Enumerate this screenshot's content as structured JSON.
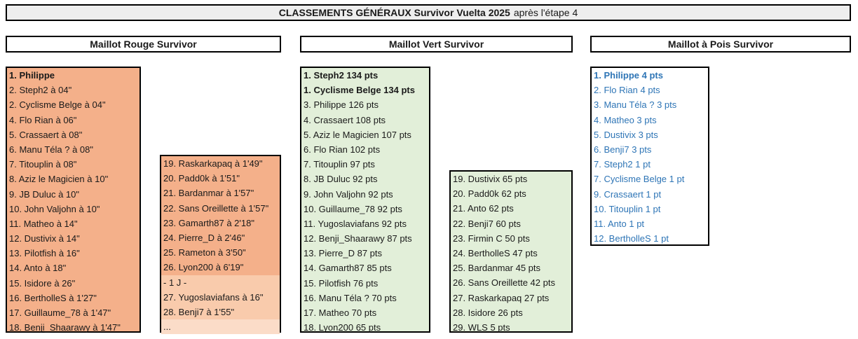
{
  "title": {
    "bold": "CLASSEMENTS GÉNÉRAUX Survivor Vuelta 2025",
    "rest": "après l'étape 4"
  },
  "rouge": {
    "header": "Maillot Rouge Survivor",
    "col1": [
      "1. Philippe",
      "2. Steph2 à 04\"",
      "2. Cyclisme Belge à 04\"",
      "4. Flo Rian à 06\"",
      "5. Crassaert à 08\"",
      "6. Manu Téla ? à 08\"",
      "7. Titouplin à 08\"",
      "8. Aziz le Magicien à 10\"",
      "9. JB Duluc à 10\"",
      "10. John Valjohn à 10\"",
      "11. Matheo à 14\"",
      "12. Dustivix à 14\"",
      "13. Pilotfish à 16\"",
      "14. Anto à 18\"",
      "15. Isidore à 26\"",
      "16. BertholleS à 1'27\"",
      "17. Guillaume_78 à 1'47\"",
      "18. Benji_Shaarawy à 1'47\""
    ],
    "col2": [
      "19. Raskarkapaq à 1'49\"",
      "20. Padd0k à 1'51\"",
      "21. Bardanmar à 1'57\"",
      "22. Sans Oreillette à 1'57\"",
      "23. Gamarth87 à 2'18\"",
      "24. Pierre_D à 2'46\"",
      "25. Rameton à 3'50\"",
      "26. Lyon200 à 6'19\""
    ],
    "col2_extra": [
      " - 1 J -",
      "27. Yugoslaviafans à 16\"",
      "28. Benji7 à 1'55\"",
      "..."
    ]
  },
  "vert": {
    "header": "Maillot Vert Survivor",
    "col1": [
      "1. Steph2 134 pts",
      "1. Cyclisme Belge 134 pts",
      "3. Philippe 126 pts",
      "4. Crassaert 108 pts",
      "5. Aziz le Magicien 107 pts",
      "6. Flo Rian 102 pts",
      "7. Titouplin 97 pts",
      "8. JB Duluc 92 pts",
      "9. John Valjohn 92 pts",
      "10. Guillaume_78 92 pts",
      "11. Yugoslaviafans 92 pts",
      "12. Benji_Shaarawy 87 pts",
      "13. Pierre_D 87 pts",
      "14. Gamarth87 85 pts",
      "15. Pilotfish 76 pts",
      "16. Manu Téla ? 70 pts",
      "17. Matheo 70 pts",
      "18. Lyon200 65 pts"
    ],
    "col2": [
      "19. Dustivix 65 pts",
      "20. Padd0k 62 pts",
      "21. Anto 62 pts",
      "22. Benji7 60 pts",
      "23. Firmin C 50 pts",
      "24. BertholleS 47 pts",
      "25. Bardanmar 45 pts",
      "26. Sans Oreillette 42 pts",
      "27. Raskarkapaq 27 pts",
      "28. Isidore 26 pts",
      "29. WLS 5 pts"
    ]
  },
  "pois": {
    "header": "Maillot à Pois Survivor",
    "col1": [
      "1. Philippe 4 pts",
      "2. Flo Rian 4 pts",
      "3. Manu Téla ? 3 pts",
      "4. Matheo 3 pts",
      "5. Dustivix 3 pts",
      "6. Benji7 3 pts",
      "7. Steph2 1 pt",
      "7. Cyclisme Belge 1 pt",
      "9. Crassaert 1 pt",
      "10. Titouplin 1 pt",
      "11. Anto 1 pt",
      "12. BertholleS 1 pt"
    ]
  },
  "colors": {
    "rouge": "#f4b08a",
    "rouge_light": "#f9cbac",
    "rouge_lighter": "#fbdcc8",
    "vert": "#e2efd9",
    "pois_text": "#2e75b6"
  }
}
